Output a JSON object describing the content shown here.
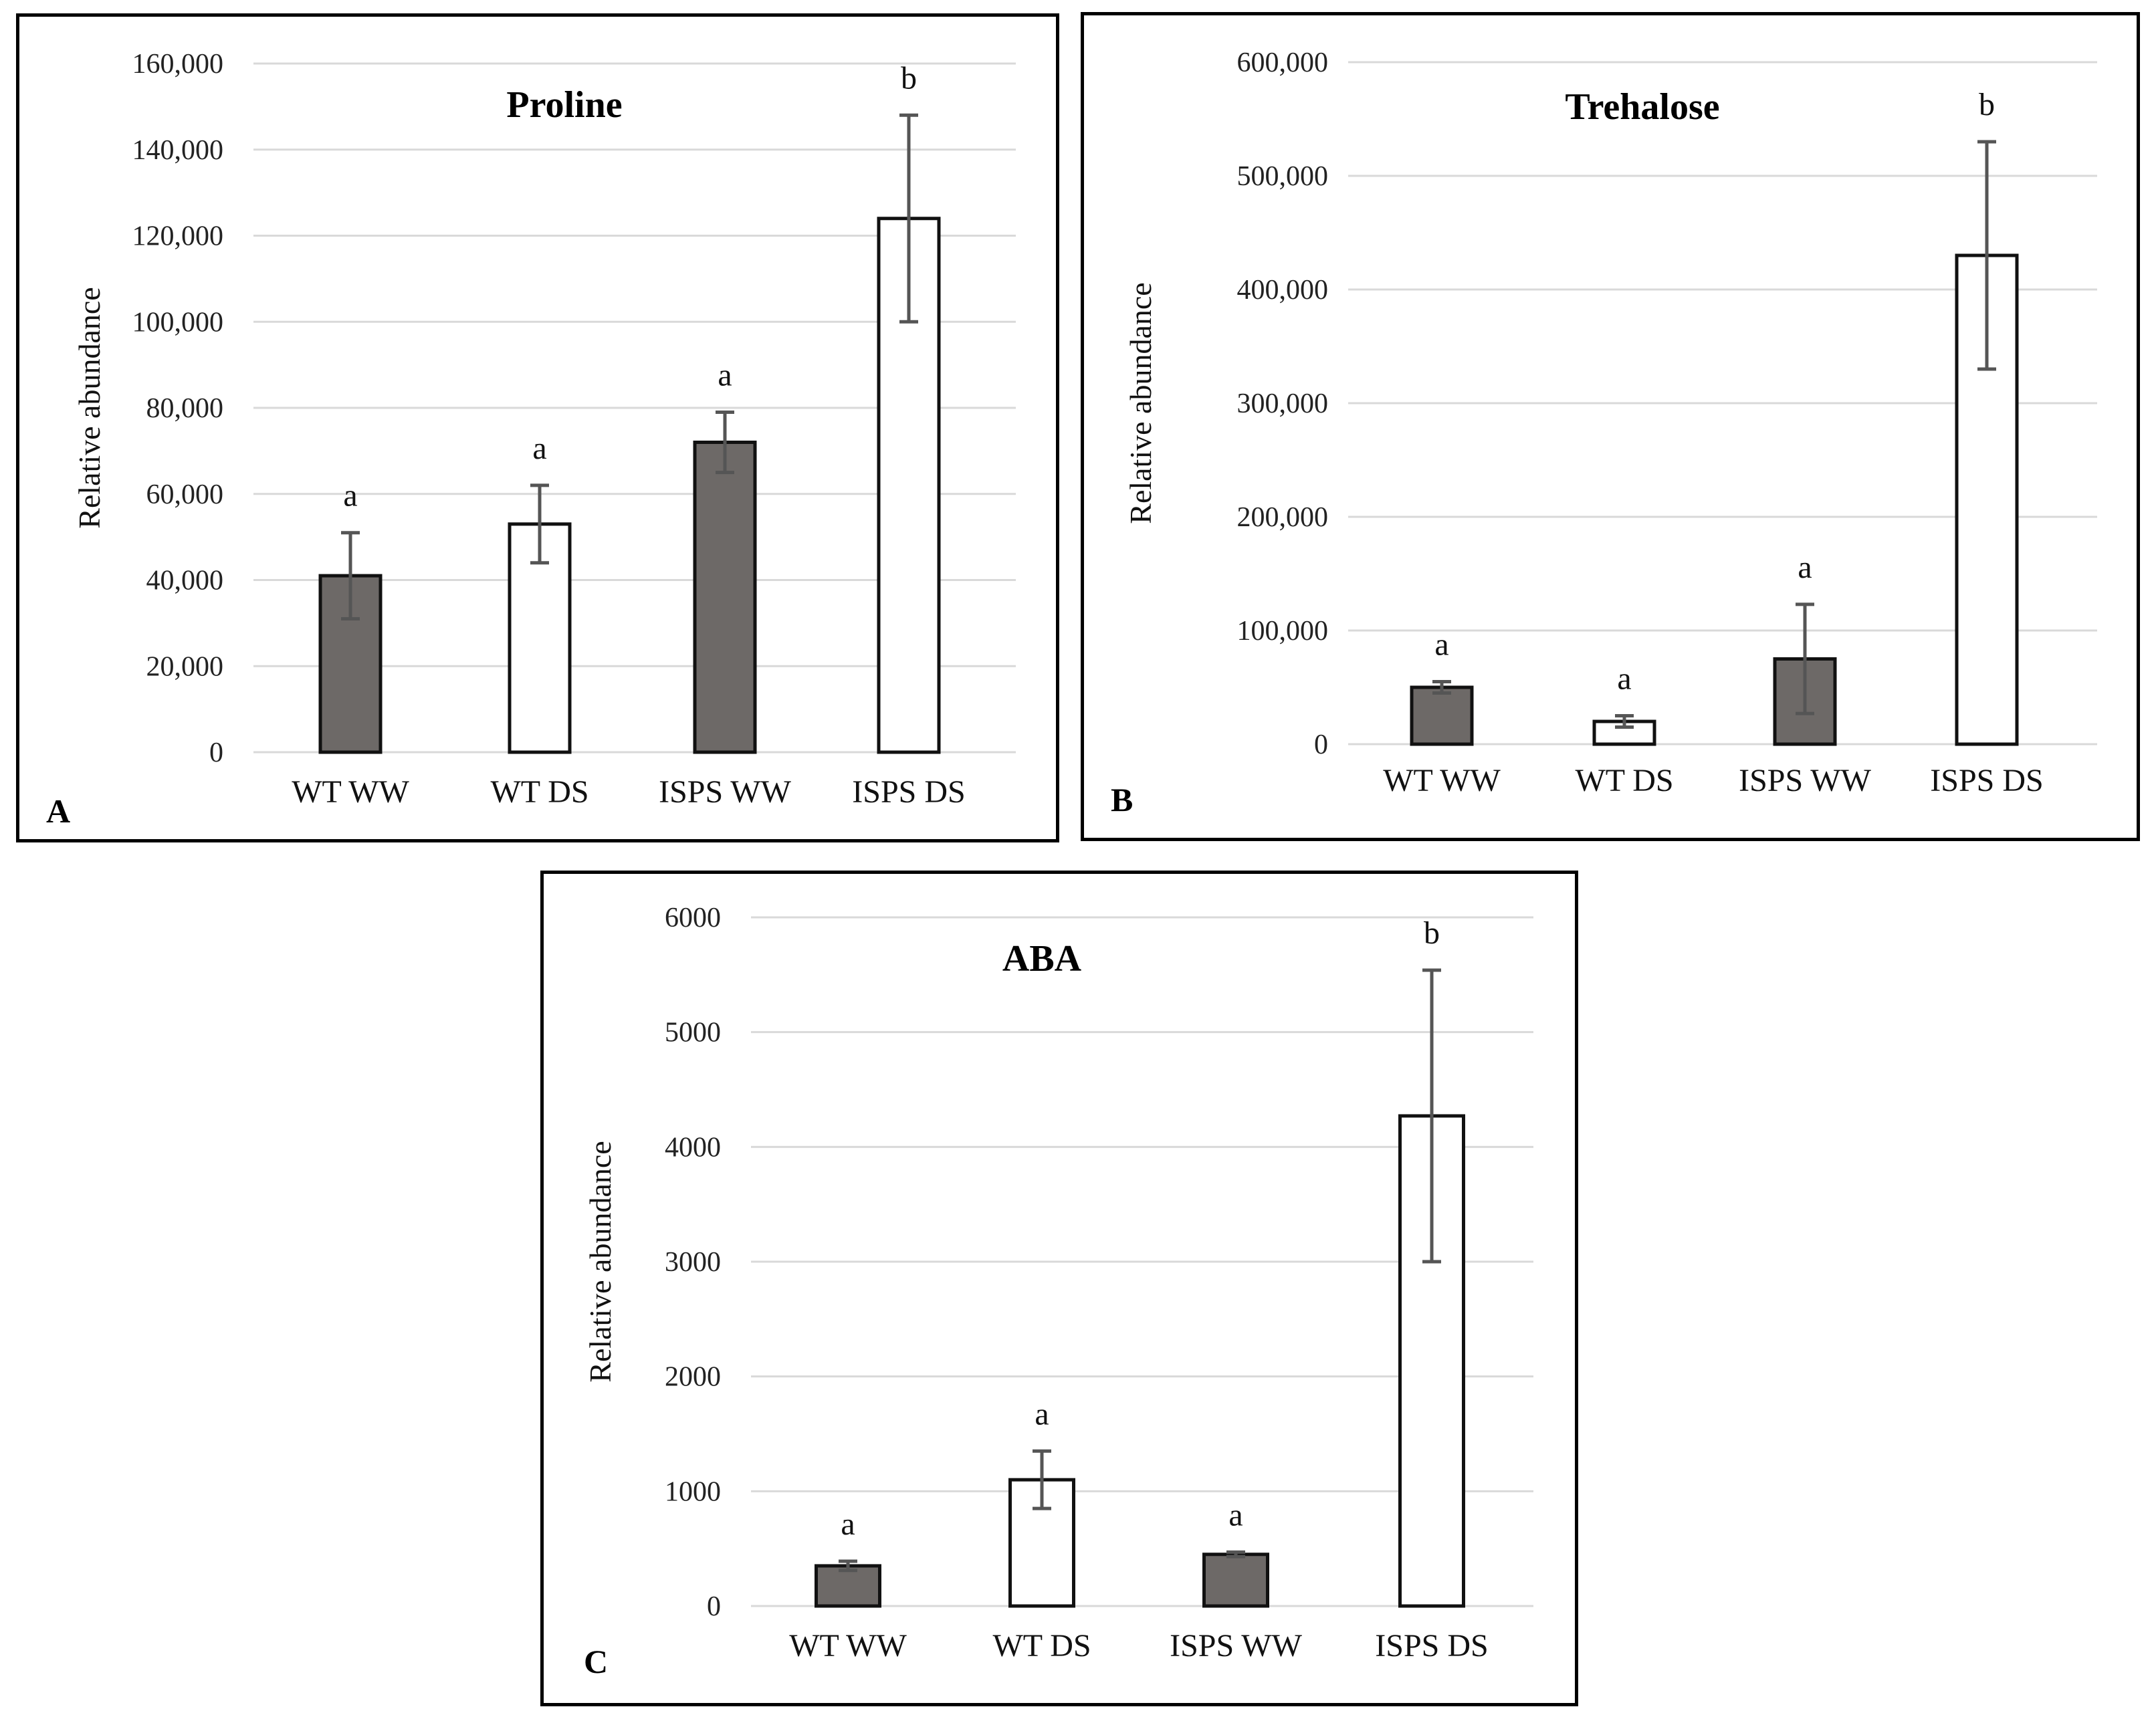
{
  "chart_data": [
    {
      "type": "bar",
      "panel_letter": "A",
      "title": "Proline",
      "ylabel": "Relative abundance",
      "xlabel": "",
      "categories": [
        "WT WW",
        "WT DS",
        "ISPS WW",
        "ISPS DS"
      ],
      "values": [
        41000,
        53000,
        72000,
        124000
      ],
      "error": [
        10000,
        9000,
        7000,
        24000
      ],
      "significance": [
        "a",
        "a",
        "a",
        "b"
      ],
      "ylim": [
        0,
        160000
      ],
      "yticks": [
        0,
        20000,
        40000,
        60000,
        80000,
        100000,
        120000,
        140000,
        160000
      ],
      "ytick_labels": [
        "0",
        "20,000",
        "40,000",
        "60,000",
        "80,000",
        "100,000",
        "120,000",
        "140,000",
        "160,000"
      ],
      "grid": true
    },
    {
      "type": "bar",
      "panel_letter": "B",
      "title": "Trehalose",
      "ylabel": "Relative abundance",
      "xlabel": "",
      "categories": [
        "WT WW",
        "WT DS",
        "ISPS WW",
        "ISPS DS"
      ],
      "values": [
        50000,
        20000,
        75000,
        430000
      ],
      "error": [
        5000,
        5000,
        48000,
        100000
      ],
      "significance": [
        "a",
        "a",
        "a",
        "b"
      ],
      "ylim": [
        0,
        600000
      ],
      "yticks": [
        0,
        100000,
        200000,
        300000,
        400000,
        500000,
        600000
      ],
      "ytick_labels": [
        "0",
        "100,000",
        "200,000",
        "300,000",
        "400,000",
        "500,000",
        "600,000"
      ],
      "grid": true
    },
    {
      "type": "bar",
      "panel_letter": "C",
      "title": "ABA",
      "ylabel": "Relative abundance",
      "xlabel": "",
      "categories": [
        "WT WW",
        "WT DS",
        "ISPS WW",
        "ISPS DS"
      ],
      "values": [
        350,
        1100,
        450,
        4270
      ],
      "error": [
        40,
        250,
        20,
        1270
      ],
      "significance": [
        "a",
        "a",
        "a",
        "b"
      ],
      "ylim": [
        0,
        6000
      ],
      "yticks": [
        0,
        1000,
        2000,
        3000,
        4000,
        5000,
        6000
      ],
      "ytick_labels": [
        "0",
        "1000",
        "2000",
        "3000",
        "4000",
        "5000",
        "6000"
      ],
      "grid": true
    }
  ],
  "colors": {
    "ww_fill": "#6d6967",
    "ds_fill": "#ffffff",
    "bar_stroke": "#111111",
    "error_bar": "#555555"
  }
}
